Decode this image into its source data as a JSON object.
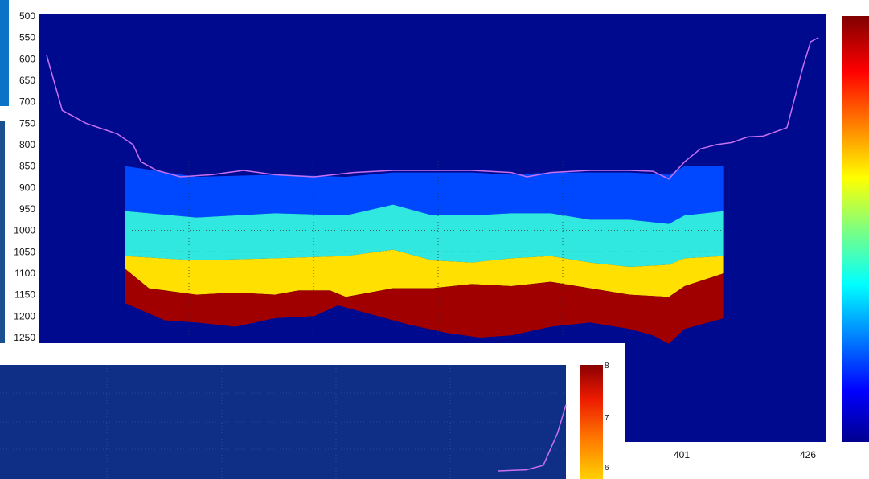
{
  "colors": {
    "background": "#000a8f",
    "depth_line": "#c86ff0",
    "overlay_background": "#0f2f86"
  },
  "chart_data": [
    {
      "type": "heatmap",
      "title": "",
      "xlabel": "",
      "ylabel": "",
      "y_ticks": [
        "500",
        "550",
        "600",
        "650",
        "700",
        "750",
        "800",
        "850",
        "900",
        "950",
        "1000",
        "1050",
        "1100",
        "1150",
        "1200",
        "1250"
      ],
      "ylim": [
        500,
        1260
      ],
      "y_inverted": true,
      "x_ticks": [
        "401",
        "426"
      ],
      "colorbar": {
        "colormap": "jet",
        "range": [
          0,
          8
        ]
      },
      "depth_line": {
        "x": [
          0.01,
          0.03,
          0.06,
          0.1,
          0.12,
          0.13,
          0.15,
          0.18,
          0.22,
          0.24,
          0.26,
          0.3,
          0.35,
          0.4,
          0.45,
          0.5,
          0.55,
          0.6,
          0.62,
          0.65,
          0.7,
          0.75,
          0.78,
          0.8,
          0.82,
          0.84,
          0.86,
          0.88,
          0.9,
          0.92,
          0.95,
          0.97,
          0.98,
          0.99
        ],
        "y": [
          590,
          720,
          750,
          775,
          800,
          840,
          860,
          875,
          870,
          865,
          860,
          870,
          875,
          865,
          860,
          860,
          860,
          865,
          875,
          865,
          860,
          860,
          862,
          880,
          840,
          810,
          800,
          795,
          782,
          780,
          760,
          620,
          560,
          550
        ]
      },
      "bands": [
        {
          "name": "top",
          "x": [
            0.11,
            0.2,
            0.3,
            0.39,
            0.45,
            0.5,
            0.55,
            0.6,
            0.65,
            0.7,
            0.75,
            0.8,
            0.82,
            0.87
          ],
          "y": [
            850,
            875,
            870,
            875,
            865,
            865,
            865,
            870,
            865,
            865,
            865,
            870,
            850,
            850
          ]
        },
        {
          "name": "cyan",
          "x": [
            0.11,
            0.2,
            0.3,
            0.39,
            0.45,
            0.5,
            0.55,
            0.6,
            0.65,
            0.7,
            0.75,
            0.8,
            0.82,
            0.87
          ],
          "y": [
            955,
            970,
            960,
            965,
            940,
            965,
            965,
            960,
            960,
            975,
            975,
            985,
            965,
            955
          ]
        },
        {
          "name": "yellow",
          "x": [
            0.11,
            0.2,
            0.3,
            0.39,
            0.45,
            0.5,
            0.55,
            0.6,
            0.65,
            0.7,
            0.75,
            0.8,
            0.82,
            0.87
          ],
          "y": [
            1060,
            1070,
            1065,
            1060,
            1045,
            1070,
            1075,
            1065,
            1060,
            1075,
            1085,
            1080,
            1065,
            1060
          ]
        },
        {
          "name": "red",
          "x": [
            0.11,
            0.14,
            0.2,
            0.25,
            0.3,
            0.33,
            0.37,
            0.39,
            0.45,
            0.5,
            0.55,
            0.6,
            0.65,
            0.7,
            0.75,
            0.8,
            0.82,
            0.87
          ],
          "y": [
            1090,
            1135,
            1150,
            1145,
            1150,
            1140,
            1140,
            1155,
            1135,
            1135,
            1125,
            1130,
            1120,
            1135,
            1150,
            1155,
            1130,
            1100
          ]
        },
        {
          "name": "bottom",
          "x": [
            0.11,
            0.16,
            0.2,
            0.25,
            0.3,
            0.35,
            0.38,
            0.42,
            0.47,
            0.52,
            0.56,
            0.6,
            0.65,
            0.7,
            0.75,
            0.78,
            0.8,
            0.82,
            0.87
          ],
          "y": [
            1170,
            1210,
            1215,
            1225,
            1205,
            1200,
            1175,
            1195,
            1220,
            1240,
            1250,
            1245,
            1225,
            1215,
            1230,
            1245,
            1265,
            1230,
            1205
          ]
        }
      ],
      "data_x_range": [
        0.11,
        0.87
      ]
    },
    {
      "type": "heatmap",
      "title": "",
      "colorbar": {
        "colormap": "jet",
        "ticks": [
          "8",
          "7",
          "6"
        ]
      },
      "depth_line": {
        "x": [
          0.88,
          0.93,
          0.96,
          0.985,
          1.0
        ],
        "y": [
          0.93,
          0.92,
          0.88,
          0.6,
          0.35
        ]
      }
    }
  ]
}
